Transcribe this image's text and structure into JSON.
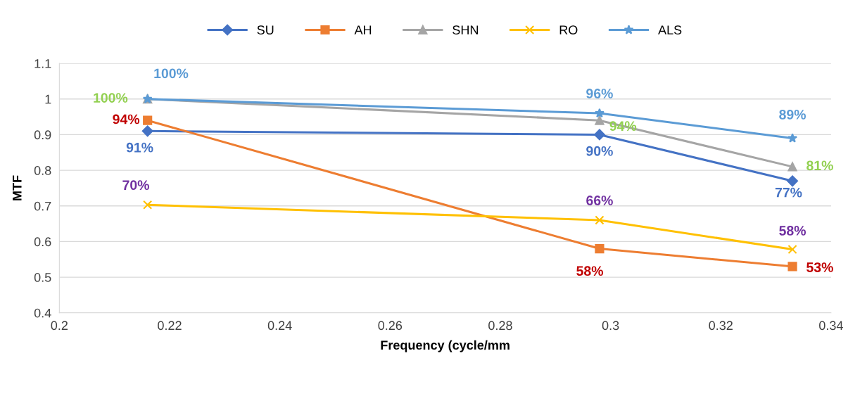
{
  "chart_data": {
    "type": "line",
    "xlabel": "Frequency (cycle/mm",
    "ylabel": "MTF",
    "x": [
      0.216,
      0.298,
      0.333
    ],
    "xlim": [
      0.2,
      0.34
    ],
    "xticks": [
      0.2,
      0.22,
      0.24,
      0.26,
      0.28,
      0.3,
      0.32,
      0.34
    ],
    "ylim": [
      0.4,
      1.1
    ],
    "yticks": [
      0.4,
      0.5,
      0.6,
      0.7,
      0.8,
      0.9,
      1,
      1.1
    ],
    "grid": "y",
    "legend": "top",
    "series": [
      {
        "name": "SU",
        "color": "#4472c4",
        "marker": "diamond",
        "values": [
          0.91,
          0.9,
          0.77
        ],
        "value_labels": [
          "91%",
          "90%",
          "77%"
        ]
      },
      {
        "name": "AH",
        "color": "#ed7d31",
        "marker": "square",
        "values": [
          0.94,
          0.58,
          0.53
        ],
        "value_labels": [
          "94%",
          "58%",
          "53%"
        ]
      },
      {
        "name": "SHN",
        "color": "#a5a5a5",
        "marker": "triangle",
        "values": [
          1.0,
          0.94,
          0.81
        ],
        "value_labels": [
          "100%",
          "94%",
          "81%"
        ]
      },
      {
        "name": "RO",
        "color": "#ffc000",
        "marker": "cross",
        "values": [
          0.703,
          0.66,
          0.578
        ],
        "value_labels": [
          "70%",
          "66%",
          "58%"
        ]
      },
      {
        "name": "ALS",
        "color": "#5b9bd5",
        "marker": "star",
        "values": [
          1.0,
          0.96,
          0.89
        ],
        "value_labels": [
          "100%",
          "96%",
          "89%"
        ]
      }
    ]
  }
}
